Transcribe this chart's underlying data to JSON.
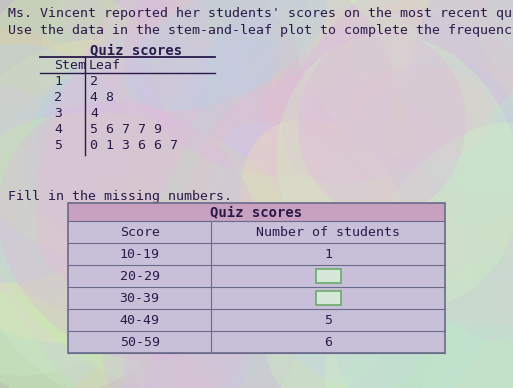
{
  "title_text": "Ms. Vincent reported her students' scores on the most recent quiz.",
  "subtitle_text": "Use the data in the stem-and-leaf plot to complete the frequency chart below.",
  "fill_text": "Fill in the missing numbers.",
  "stem_leaf_title": "Quiz scores",
  "stem_header": "Stem",
  "leaf_header": "Leaf",
  "stem_data": [
    {
      "stem": "1",
      "leaf": "2"
    },
    {
      "stem": "2",
      "leaf": "4 8"
    },
    {
      "stem": "3",
      "leaf": "4"
    },
    {
      "stem": "4",
      "leaf": "5 6 7 7 9"
    },
    {
      "stem": "5",
      "leaf": "0 1 3 6 6 7"
    }
  ],
  "freq_table_title": "Quiz scores",
  "freq_col1_header": "Score",
  "freq_col2_header": "Number of students",
  "freq_rows": [
    {
      "score": "10-19",
      "count": "1",
      "filled": true
    },
    {
      "score": "20-29",
      "count": "",
      "filled": false
    },
    {
      "score": "30-39",
      "count": "",
      "filled": false
    },
    {
      "score": "40-49",
      "count": "5",
      "filled": true
    },
    {
      "score": "50-59",
      "count": "6",
      "filled": true
    }
  ],
  "text_color": "#2a1a4a",
  "table_title_color": "#c8a0c0",
  "table_row_color": "#c8c0d8",
  "table_border_color": "#6a6a8a",
  "empty_box_facecolor": "#d8e8d8",
  "empty_box_edgecolor": "#6aaa6a"
}
